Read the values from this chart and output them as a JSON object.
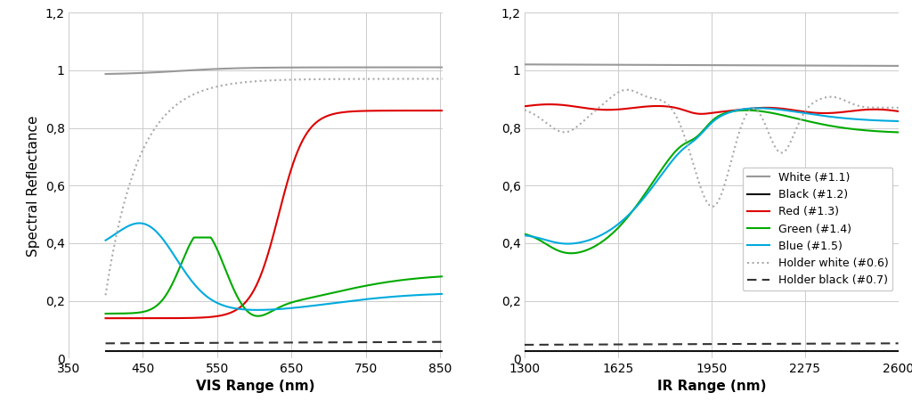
{
  "vis_xlim": [
    350,
    853
  ],
  "ir_xlim": [
    1300,
    2600
  ],
  "ylim": [
    0,
    1.2
  ],
  "yticks": [
    0,
    0.2,
    0.4,
    0.6,
    0.8,
    1.0,
    1.2
  ],
  "yticklabels": [
    "0",
    "0,2",
    "0,4",
    "0,6",
    "0,8",
    "1",
    "1,2"
  ],
  "vis_xticks": [
    350,
    450,
    550,
    650,
    750,
    850
  ],
  "ir_xticks": [
    1300,
    1625,
    1950,
    2275,
    2600
  ],
  "vis_xlabel": "VIS Range (nm)",
  "ir_xlabel": "IR Range (nm)",
  "ylabel": "Spectral Reflectance",
  "legend_labels": [
    "White (#1.1)",
    "Black (#1.2)",
    "Red (#1.3)",
    "Green (#1.4)",
    "Blue (#1.5)",
    "Holder white (#0.6)",
    "Holder black (#0.7)"
  ],
  "legend_colors": [
    "#999999",
    "#111111",
    "#dd0000",
    "#00aa00",
    "#00aadd",
    "#aaaaaa",
    "#333333"
  ],
  "legend_styles": [
    "-",
    "-",
    "-",
    "-",
    "-",
    ":",
    "--"
  ],
  "background_color": "#ffffff",
  "grid_color": "#cccccc",
  "label_fontsize": 11,
  "tick_fontsize": 10,
  "legend_fontsize": 9,
  "line_width": 1.5
}
